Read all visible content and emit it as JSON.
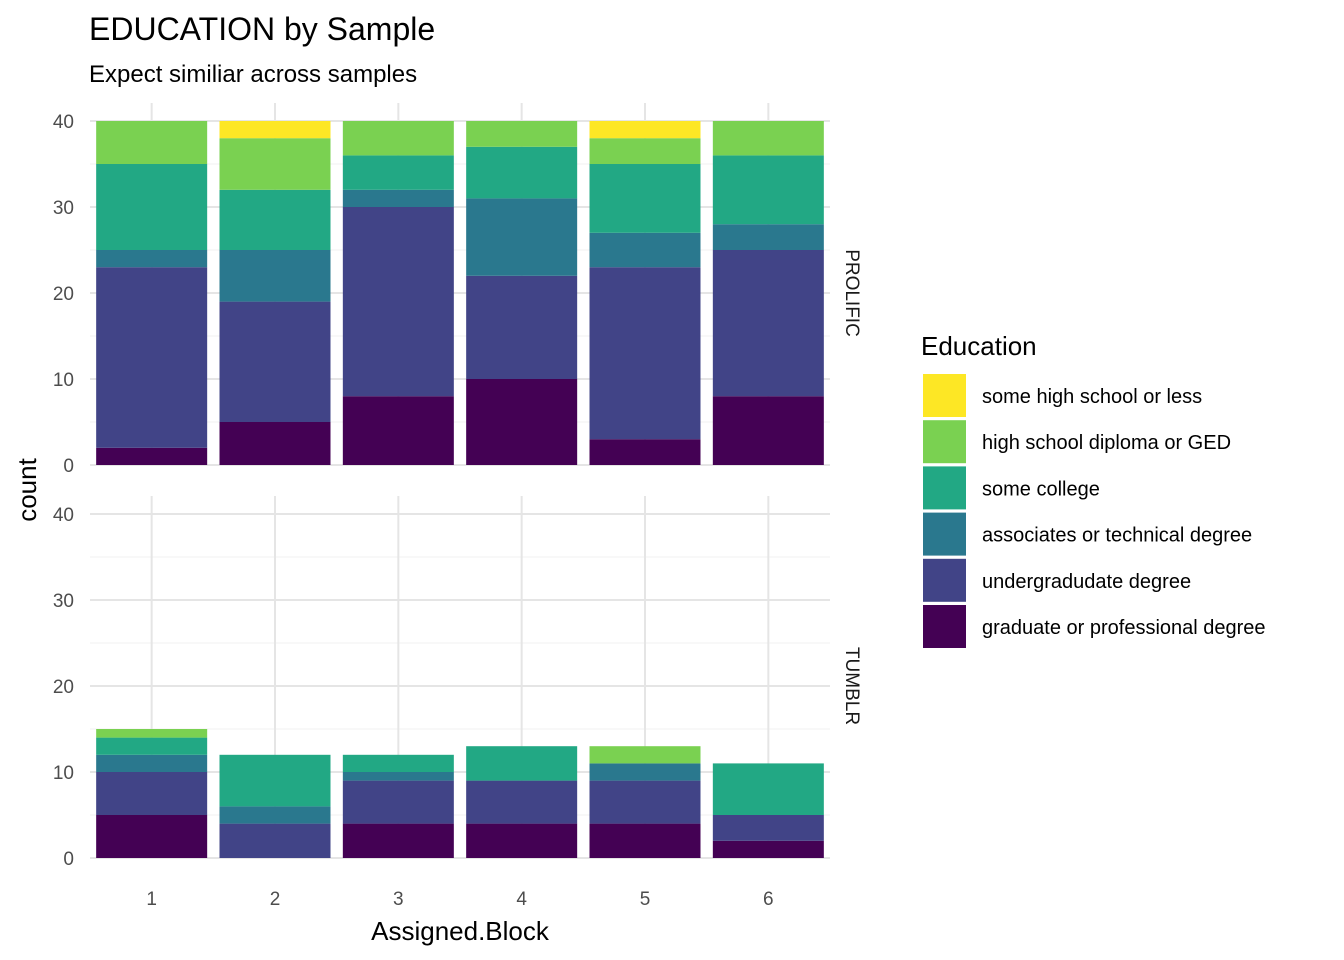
{
  "chart_data": {
    "type": "bar",
    "stacked": true,
    "title": "EDUCATION by Sample",
    "subtitle": "Expect similiar across samples",
    "xlabel": "Assigned.Block",
    "ylabel": "count",
    "ylim": [
      0,
      40
    ],
    "yticks": [
      0,
      10,
      20,
      30,
      40
    ],
    "categories": [
      "1",
      "2",
      "3",
      "4",
      "5",
      "6"
    ],
    "grid": true,
    "legend": {
      "title": "Education",
      "position": "right",
      "items": [
        {
          "name": "some high school or less",
          "color": "#FDE725"
        },
        {
          "name": "high school diploma or GED",
          "color": "#7AD151"
        },
        {
          "name": "some college",
          "color": "#22A884"
        },
        {
          "name": "associates or technical degree",
          "color": "#2A788E"
        },
        {
          "name": "undergradudate degree",
          "color": "#414487"
        },
        {
          "name": "graduate or professional degree",
          "color": "#440154"
        }
      ]
    },
    "panels": [
      {
        "name": "PROLIFIC",
        "series": [
          {
            "name": "graduate or professional degree",
            "color": "#440154",
            "values": [
              2,
              5,
              8,
              10,
              3,
              8
            ]
          },
          {
            "name": "undergradudate degree",
            "color": "#414487",
            "values": [
              21,
              14,
              22,
              12,
              20,
              17
            ]
          },
          {
            "name": "associates or technical degree",
            "color": "#2A788E",
            "values": [
              2,
              6,
              2,
              9,
              4,
              3
            ]
          },
          {
            "name": "some college",
            "color": "#22A884",
            "values": [
              10,
              7,
              4,
              6,
              8,
              8
            ]
          },
          {
            "name": "high school diploma or GED",
            "color": "#7AD151",
            "values": [
              5,
              6,
              4,
              3,
              3,
              4
            ]
          },
          {
            "name": "some high school or less",
            "color": "#FDE725",
            "values": [
              0,
              2,
              0,
              0,
              2,
              0
            ]
          }
        ]
      },
      {
        "name": "TUMBLR",
        "series": [
          {
            "name": "graduate or professional degree",
            "color": "#440154",
            "values": [
              5,
              0,
              4,
              4,
              4,
              2
            ]
          },
          {
            "name": "undergradudate degree",
            "color": "#414487",
            "values": [
              5,
              4,
              5,
              5,
              5,
              3
            ]
          },
          {
            "name": "associates or technical degree",
            "color": "#2A788E",
            "values": [
              2,
              2,
              1,
              0,
              2,
              0
            ]
          },
          {
            "name": "some college",
            "color": "#22A884",
            "values": [
              2,
              6,
              2,
              4,
              0,
              6
            ]
          },
          {
            "name": "high school diploma or GED",
            "color": "#7AD151",
            "values": [
              1,
              0,
              0,
              0,
              2,
              0
            ]
          },
          {
            "name": "some high school or less",
            "color": "#FDE725",
            "values": [
              0,
              0,
              0,
              0,
              0,
              0
            ]
          }
        ]
      }
    ]
  }
}
